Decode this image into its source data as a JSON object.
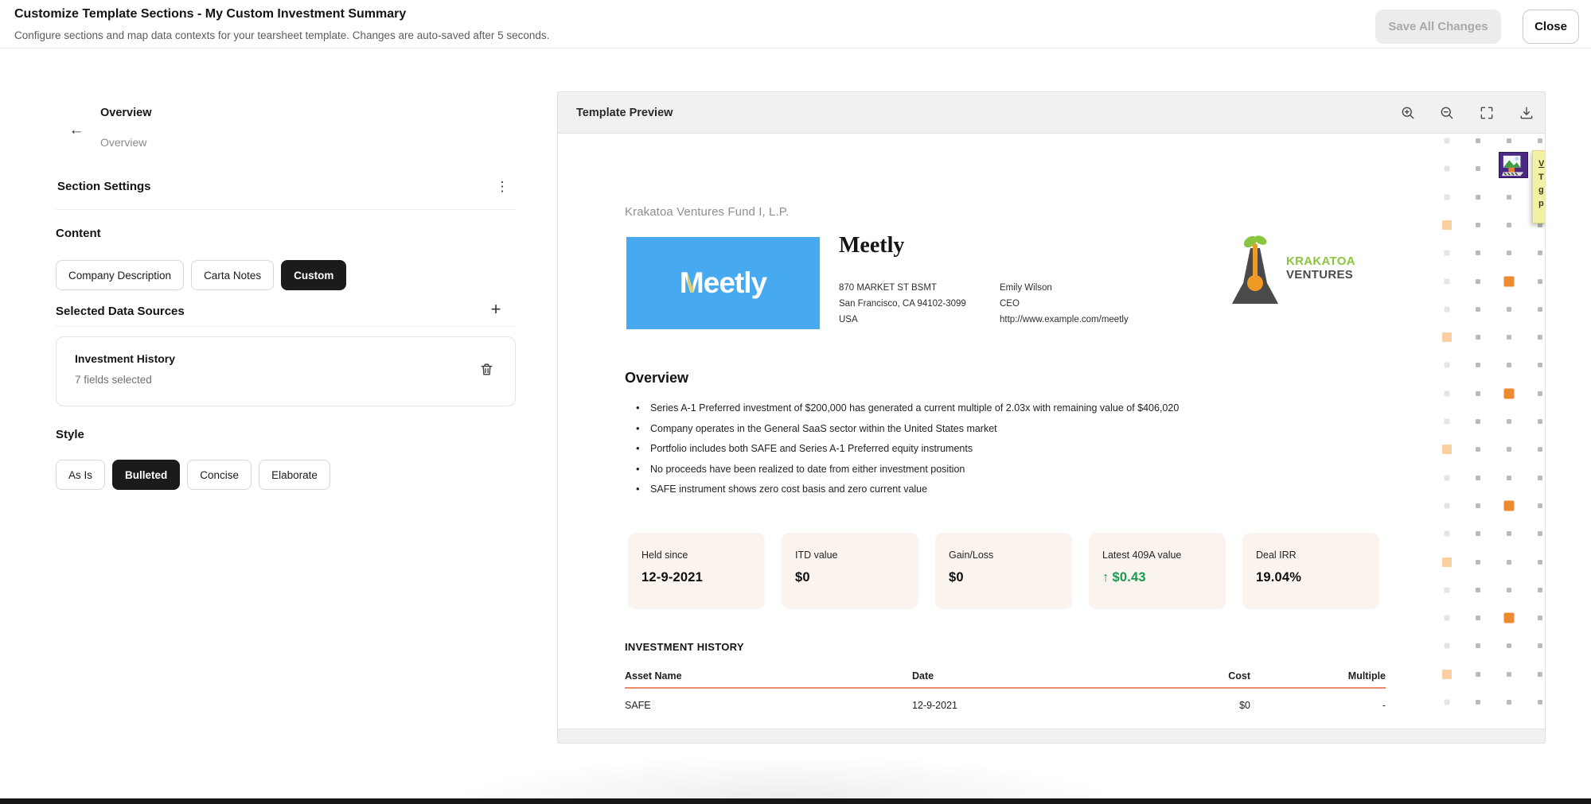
{
  "header": {
    "title": "Customize Template Sections - My Custom Investment Summary",
    "subtitle": "Configure sections and map data contexts for your tearsheet template. Changes are auto-saved after 5 seconds.",
    "save_label": "Save All Changes",
    "close_label": "Close"
  },
  "sidebar": {
    "breadcrumb_title": "Overview",
    "breadcrumb_sub": "Overview",
    "section_settings_label": "Section Settings",
    "content_label": "Content",
    "content_options": [
      {
        "label": "Company Description",
        "selected": false
      },
      {
        "label": "Carta Notes",
        "selected": false
      },
      {
        "label": "Custom",
        "selected": true
      }
    ],
    "data_sources_label": "Selected Data Sources",
    "data_source": {
      "name": "Investment History",
      "meta": "7 fields selected"
    },
    "style_label": "Style",
    "style_options": [
      {
        "label": "As Is",
        "selected": false
      },
      {
        "label": "Bulleted",
        "selected": true
      },
      {
        "label": "Concise",
        "selected": false
      },
      {
        "label": "Elaborate",
        "selected": false
      }
    ]
  },
  "preview": {
    "panel_title": "Template Preview",
    "fund_name": "Krakatoa Ventures Fund I, L.P.",
    "company": {
      "name": "Meetly",
      "logo_text": "Meetly",
      "address": [
        "870 MARKET ST BSMT",
        "San Francisco, CA 94102-3099",
        "USA"
      ],
      "contact": [
        "Emily Wilson",
        "CEO",
        "http://www.example.com/meetly"
      ]
    },
    "brand": {
      "name_top": "KRAKATOA",
      "name_bottom": "VENTURES"
    },
    "overview": {
      "heading": "Overview",
      "bullets": [
        "Series A-1 Preferred investment of $200,000 has generated a current multiple of 2.03x with remaining value of $406,020",
        "Company operates in the General SaaS sector within the United States market",
        "Portfolio includes both SAFE and Series A-1 Preferred equity instruments",
        "No proceeds have been realized to date from either investment position",
        "SAFE instrument shows zero cost basis and zero current value"
      ]
    },
    "stats": [
      {
        "label": "Held since",
        "value": "12-9-2021",
        "positive": false
      },
      {
        "label": "ITD value",
        "value": "$0",
        "positive": false
      },
      {
        "label": "Gain/Loss",
        "value": "$0",
        "positive": false
      },
      {
        "label": "Latest 409A value",
        "value": "$0.43",
        "prefix": "↑",
        "positive": true
      },
      {
        "label": "Deal IRR",
        "value": "19.04%",
        "positive": false
      }
    ],
    "history": {
      "title": "INVESTMENT HISTORY",
      "columns": [
        "Asset Name",
        "Date",
        "Cost",
        "Multiple"
      ],
      "rows": [
        [
          "SAFE",
          "12-9-2021",
          "$0",
          "-"
        ]
      ]
    },
    "note_lines": [
      "V",
      "T",
      "g",
      "p"
    ]
  },
  "decor_dots": {
    "col_offsets": [
      0,
      39,
      78,
      117
    ],
    "row_count": 21,
    "row_spacing": 35.3,
    "col0_highlight_rows": [
      3,
      7,
      11,
      15,
      19
    ],
    "col2_highlight_rows": [
      5,
      9,
      13,
      17
    ]
  },
  "colors": {
    "selected_pill": "#1b1b1b",
    "meetly_blue": "#47a9f0",
    "meetly_accent": "#d9cf7d",
    "krakatoa_green": "#8bc53f",
    "krakatoa_dark": "#4a4a4a",
    "stat_card_bg": "#faf3ee",
    "positive_green": "#169c52",
    "table_rule_salmon": "#ef8a68",
    "dot_orange": "#ee8a2e",
    "dot_light_orange": "#f9d0a2",
    "note_yellow": "#f5f1a4",
    "broken_img_purple": "#4b2882"
  }
}
